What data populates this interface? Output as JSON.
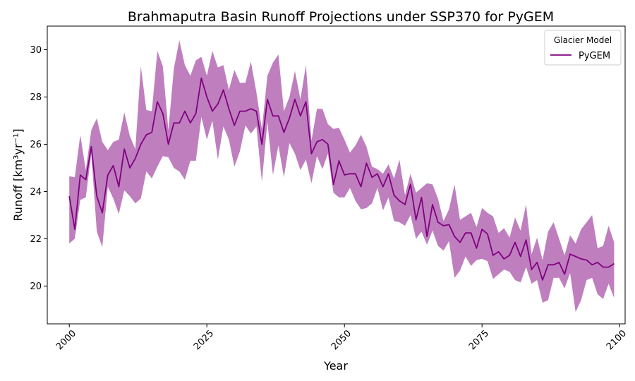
{
  "colors": {
    "line": "#800080",
    "band": "#800080",
    "band_opacity": 0.5
  },
  "chart_data": {
    "type": "line",
    "title": "Brahmaputra Basin Runoff Projections under SSP370 for PyGEM",
    "xlabel": "Year",
    "ylabel": "Runoff [km³yr⁻¹]",
    "xlim": [
      1996,
      2101
    ],
    "ylim": [
      18.4,
      31.0
    ],
    "xticks": [
      2000,
      2025,
      2050,
      2075,
      2100
    ],
    "yticks": [
      20,
      22,
      24,
      26,
      28,
      30
    ],
    "grid": false,
    "legend": {
      "title": "Glacier Model",
      "position": "top-right",
      "entries": [
        "PyGEM"
      ]
    },
    "series": [
      {
        "name": "PyGEM",
        "x": [
          2000,
          2001,
          2002,
          2003,
          2004,
          2005,
          2006,
          2007,
          2008,
          2009,
          2010,
          2011,
          2012,
          2013,
          2014,
          2015,
          2016,
          2017,
          2018,
          2019,
          2020,
          2021,
          2022,
          2023,
          2024,
          2025,
          2026,
          2027,
          2028,
          2029,
          2030,
          2031,
          2032,
          2033,
          2034,
          2035,
          2036,
          2037,
          2038,
          2039,
          2040,
          2041,
          2042,
          2043,
          2044,
          2045,
          2046,
          2047,
          2048,
          2049,
          2050,
          2051,
          2052,
          2053,
          2054,
          2055,
          2056,
          2057,
          2058,
          2059,
          2060,
          2061,
          2062,
          2063,
          2064,
          2065,
          2066,
          2067,
          2068,
          2069,
          2070,
          2071,
          2072,
          2073,
          2074,
          2075,
          2076,
          2077,
          2078,
          2079,
          2080,
          2081,
          2082,
          2083,
          2084,
          2085,
          2086,
          2087,
          2088,
          2089,
          2090,
          2091,
          2092,
          2093,
          2094,
          2095,
          2096,
          2097,
          2098,
          2099
        ],
        "mean": [
          23.8,
          22.4,
          24.7,
          24.5,
          25.9,
          23.8,
          23.1,
          24.7,
          25.1,
          24.2,
          25.8,
          25.0,
          25.4,
          26.0,
          26.4,
          26.5,
          27.8,
          27.3,
          26.0,
          26.9,
          26.9,
          27.4,
          26.9,
          27.3,
          28.8,
          28.0,
          27.4,
          27.7,
          28.3,
          27.5,
          26.8,
          27.4,
          27.4,
          27.5,
          27.4,
          26.0,
          27.9,
          27.2,
          27.2,
          26.5,
          27.1,
          27.9,
          27.2,
          27.8,
          25.6,
          26.1,
          26.2,
          26.0,
          24.3,
          25.3,
          24.7,
          24.75,
          24.75,
          24.2,
          25.2,
          24.6,
          24.75,
          24.2,
          24.75,
          23.85,
          23.6,
          23.45,
          24.3,
          22.8,
          23.75,
          22.1,
          23.45,
          22.7,
          22.55,
          22.6,
          22.1,
          21.85,
          22.25,
          22.25,
          21.6,
          22.4,
          22.2,
          21.3,
          21.45,
          21.15,
          21.3,
          21.85,
          21.25,
          21.95,
          20.7,
          21.0,
          20.25,
          20.9,
          20.9,
          21.0,
          20.5,
          21.35,
          21.25,
          21.15,
          21.1,
          20.9,
          21.0,
          20.8,
          20.8,
          20.95
        ],
        "upper": [
          24.65,
          24.6,
          26.4,
          24.9,
          26.6,
          27.1,
          26.1,
          25.75,
          26.1,
          26.2,
          27.35,
          26.35,
          25.8,
          29.3,
          27.45,
          27.4,
          29.95,
          29.3,
          26.6,
          29.2,
          30.4,
          29.35,
          28.9,
          29.55,
          29.7,
          28.9,
          29.95,
          29.25,
          29.35,
          28.3,
          29.15,
          28.6,
          28.6,
          29.5,
          28.2,
          26.65,
          28.9,
          29.45,
          29.8,
          27.4,
          28.0,
          29.1,
          27.9,
          29.35,
          26.15,
          27.5,
          27.5,
          26.85,
          26.65,
          26.7,
          26.2,
          25.65,
          25.95,
          26.4,
          25.9,
          25.05,
          24.95,
          24.75,
          25.15,
          24.55,
          25.35,
          23.85,
          24.75,
          23.95,
          24.15,
          24.35,
          24.3,
          23.7,
          22.75,
          23.25,
          24.3,
          22.8,
          22.95,
          23.1,
          22.5,
          23.3,
          23.1,
          22.95,
          22.25,
          22.45,
          22.05,
          22.9,
          22.35,
          23.45,
          21.35,
          22.05,
          21.1,
          22.3,
          22.7,
          22.0,
          21.3,
          22.15,
          21.8,
          22.4,
          22.7,
          23.0,
          21.6,
          21.7,
          22.55,
          21.85
        ],
        "lower": [
          21.8,
          22.0,
          23.65,
          23.75,
          25.6,
          22.3,
          21.65,
          24.2,
          23.7,
          23.05,
          24.05,
          23.8,
          23.5,
          23.7,
          24.85,
          24.55,
          25.05,
          25.5,
          25.45,
          25.0,
          24.85,
          24.5,
          25.3,
          25.3,
          27.15,
          26.2,
          27.0,
          25.35,
          26.75,
          26.2,
          25.05,
          25.7,
          26.8,
          26.45,
          26.75,
          24.4,
          26.95,
          24.7,
          25.95,
          24.6,
          26.05,
          25.6,
          24.9,
          25.35,
          24.35,
          25.5,
          24.95,
          25.6,
          23.95,
          23.75,
          23.75,
          24.15,
          23.6,
          23.25,
          23.3,
          23.5,
          24.15,
          23.2,
          23.75,
          22.75,
          22.7,
          22.55,
          23.0,
          22.0,
          22.3,
          21.75,
          22.35,
          21.7,
          21.5,
          21.9,
          20.35,
          20.65,
          21.25,
          20.85,
          21.1,
          21.15,
          21.05,
          20.3,
          20.5,
          20.7,
          20.6,
          20.25,
          20.15,
          20.8,
          20.1,
          20.25,
          19.3,
          19.4,
          20.35,
          20.35,
          19.9,
          20.55,
          18.9,
          19.4,
          20.25,
          20.35,
          19.65,
          19.45,
          20.1,
          19.5
        ]
      }
    ]
  }
}
